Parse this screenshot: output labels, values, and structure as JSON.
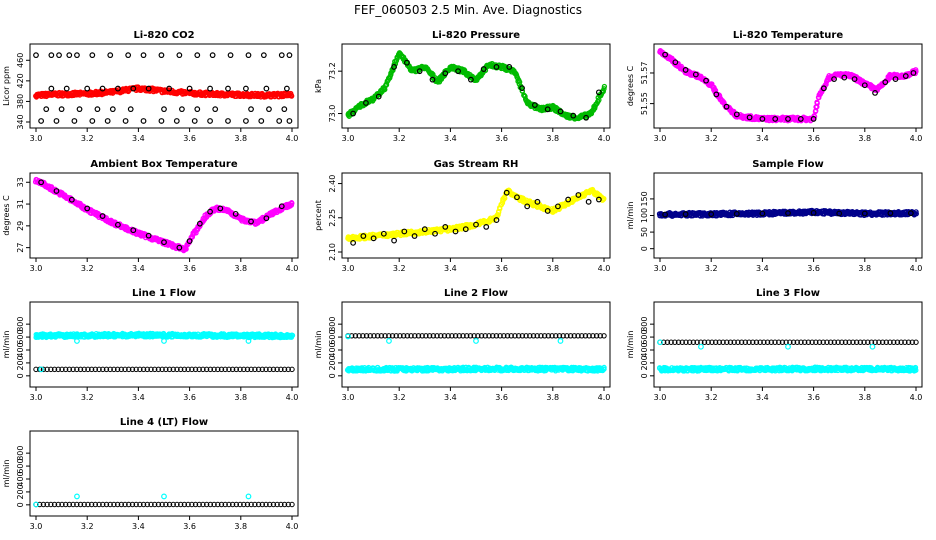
{
  "figure": {
    "title": "FEF_060503  2.5 Min. Ave. Diagnostics"
  },
  "chart_data": [
    {
      "type": "scatter",
      "title": "Li-820 CO2",
      "xlabel": "",
      "ylabel": "Licor ppm",
      "xlim": [
        3.0,
        4.0
      ],
      "ylim": [
        340,
        480
      ],
      "xticks": [
        "3.0",
        "3.2",
        "3.4",
        "3.6",
        "3.8",
        "4.0"
      ],
      "yticks": [
        "340",
        "380",
        "420",
        "460"
      ],
      "series": [
        {
          "color": "#ff0000",
          "marker": "dense-band",
          "x": [
            3.0,
            3.1,
            3.2,
            3.3,
            3.35,
            3.4,
            3.45,
            3.5,
            3.6,
            3.7,
            3.8,
            3.9,
            4.0
          ],
          "y": [
            392,
            394,
            395,
            398,
            402,
            405,
            403,
            400,
            396,
            394,
            393,
            392,
            393
          ]
        },
        {
          "color": "#000000",
          "marker": "circle",
          "x": [
            3.0,
            3.06,
            3.09,
            3.13,
            3.16,
            3.22,
            3.29,
            3.36,
            3.42,
            3.49,
            3.56,
            3.63,
            3.69,
            3.76,
            3.83,
            3.89,
            3.96,
            3.99
          ],
          "y": [
            470,
            470,
            470,
            470,
            470,
            470,
            470,
            470,
            470,
            470,
            470,
            470,
            470,
            470,
            470,
            470,
            470,
            470
          ]
        },
        {
          "color": "#000000",
          "marker": "circle",
          "x": [
            3.06,
            3.12,
            3.2,
            3.26,
            3.32,
            3.38,
            3.44,
            3.52,
            3.6,
            3.68,
            3.75,
            3.82,
            3.9,
            3.98
          ],
          "y": [
            405,
            405,
            405,
            405,
            405,
            405,
            405,
            405,
            405,
            405,
            405,
            405,
            405,
            405
          ]
        },
        {
          "color": "#000000",
          "marker": "circle",
          "x": [
            3.04,
            3.1,
            3.17,
            3.24,
            3.3,
            3.37,
            3.5,
            3.57,
            3.63,
            3.7,
            3.84,
            3.91,
            3.97
          ],
          "y": [
            365,
            365,
            365,
            365,
            365,
            365,
            365,
            365,
            365,
            365,
            365,
            365,
            365
          ]
        },
        {
          "color": "#000000",
          "marker": "circle",
          "x": [
            3.02,
            3.08,
            3.15,
            3.22,
            3.28,
            3.35,
            3.42,
            3.49,
            3.55,
            3.62,
            3.68,
            3.75,
            3.82,
            3.88,
            3.95,
            3.99
          ],
          "y": [
            342,
            342,
            342,
            342,
            342,
            342,
            342,
            342,
            342,
            342,
            342,
            342,
            342,
            342,
            342,
            342
          ]
        }
      ]
    },
    {
      "type": "scatter",
      "title": "Li-820 Pressure",
      "xlabel": "",
      "ylabel": "kPa",
      "xlim": [
        3.0,
        4.0
      ],
      "ylim": [
        72.96,
        73.3
      ],
      "xticks": [
        "3.0",
        "3.2",
        "3.4",
        "3.6",
        "3.8",
        "4.0"
      ],
      "yticks": [
        "73.0",
        "73.2"
      ],
      "series": [
        {
          "color": "#00bb00",
          "marker": "dense-band",
          "x": [
            3.0,
            3.05,
            3.1,
            3.15,
            3.2,
            3.25,
            3.3,
            3.35,
            3.4,
            3.45,
            3.5,
            3.55,
            3.6,
            3.65,
            3.7,
            3.75,
            3.8,
            3.85,
            3.9,
            3.95,
            4.0
          ],
          "y": [
            72.99,
            73.04,
            73.07,
            73.13,
            73.29,
            73.2,
            73.22,
            73.15,
            73.22,
            73.2,
            73.16,
            73.23,
            73.22,
            73.2,
            73.05,
            73.02,
            73.03,
            72.99,
            72.98,
            73.0,
            73.12
          ]
        },
        {
          "color": "#000000",
          "marker": "circle",
          "x": [
            3.02,
            3.07,
            3.12,
            3.18,
            3.23,
            3.28,
            3.33,
            3.38,
            3.43,
            3.48,
            3.53,
            3.58,
            3.63,
            3.68,
            3.73,
            3.78,
            3.83,
            3.88,
            3.93,
            3.98
          ],
          "y": [
            73.0,
            73.05,
            73.08,
            73.22,
            73.24,
            73.2,
            73.16,
            73.19,
            73.2,
            73.16,
            73.21,
            73.22,
            73.22,
            73.12,
            73.04,
            73.02,
            73.01,
            72.99,
            72.98,
            73.1
          ]
        }
      ]
    },
    {
      "type": "scatter",
      "title": "Li-820 Temperature",
      "xlabel": "",
      "ylabel": "degrees C",
      "xlim": [
        3.0,
        4.0
      ],
      "ylim": [
        51.538,
        51.585
      ],
      "xticks": [
        "3.0",
        "3.2",
        "3.4",
        "3.6",
        "3.8",
        "4.0"
      ],
      "yticks": [
        "51.55",
        "51.57"
      ],
      "series": [
        {
          "color": "#ff00ff",
          "marker": "dense-band",
          "x": [
            3.0,
            3.05,
            3.1,
            3.15,
            3.2,
            3.25,
            3.3,
            3.4,
            3.5,
            3.6,
            3.62,
            3.66,
            3.7,
            3.75,
            3.8,
            3.85,
            3.9,
            3.95,
            4.0
          ],
          "y": [
            51.584,
            51.578,
            51.571,
            51.568,
            51.562,
            51.55,
            51.542,
            51.54,
            51.54,
            51.54,
            51.555,
            51.567,
            51.569,
            51.568,
            51.563,
            51.559,
            51.568,
            51.568,
            51.571
          ]
        },
        {
          "color": "#000000",
          "marker": "circle",
          "x": [
            3.02,
            3.06,
            3.1,
            3.14,
            3.18,
            3.22,
            3.26,
            3.3,
            3.35,
            3.4,
            3.45,
            3.5,
            3.55,
            3.6,
            3.64,
            3.68,
            3.72,
            3.76,
            3.8,
            3.84,
            3.88,
            3.92,
            3.96,
            3.99
          ],
          "y": [
            51.582,
            51.577,
            51.572,
            51.569,
            51.565,
            51.556,
            51.548,
            51.543,
            51.541,
            51.54,
            51.54,
            51.54,
            51.54,
            51.54,
            51.56,
            51.566,
            51.567,
            51.566,
            51.562,
            51.557,
            51.564,
            51.566,
            51.568,
            51.57
          ]
        }
      ]
    },
    {
      "type": "scatter",
      "title": "Ambient Box Temperature",
      "xlabel": "",
      "ylabel": "degrees C",
      "xlim": [
        3.0,
        4.0
      ],
      "ylim": [
        26.6,
        33.3
      ],
      "xticks": [
        "3.0",
        "3.2",
        "3.4",
        "3.6",
        "3.8",
        "4.0"
      ],
      "yticks": [
        "27",
        "29",
        "31",
        "33"
      ],
      "series": [
        {
          "color": "#ff00ff",
          "marker": "dense-band",
          "x": [
            3.0,
            3.1,
            3.2,
            3.3,
            3.4,
            3.5,
            3.58,
            3.62,
            3.66,
            3.7,
            3.75,
            3.8,
            3.86,
            3.9,
            3.95,
            4.0
          ],
          "y": [
            33.2,
            31.9,
            30.5,
            29.3,
            28.3,
            27.5,
            26.8,
            28.4,
            29.8,
            30.6,
            30.4,
            29.6,
            29.3,
            29.8,
            30.5,
            31.0
          ]
        },
        {
          "color": "#000000",
          "marker": "circle",
          "x": [
            3.02,
            3.08,
            3.14,
            3.2,
            3.26,
            3.32,
            3.38,
            3.44,
            3.5,
            3.56,
            3.6,
            3.64,
            3.68,
            3.72,
            3.78,
            3.84,
            3.9,
            3.96
          ],
          "y": [
            33.0,
            32.2,
            31.4,
            30.6,
            29.9,
            29.1,
            28.6,
            28.1,
            27.5,
            27.0,
            27.6,
            29.2,
            30.3,
            30.6,
            30.1,
            29.4,
            29.7,
            30.8
          ]
        }
      ]
    },
    {
      "type": "scatter",
      "title": "Gas Stream RH",
      "xlabel": "",
      "ylabel": "percent",
      "xlim": [
        3.0,
        4.0
      ],
      "ylim": [
        2.1,
        2.42
      ],
      "xticks": [
        "3.0",
        "3.2",
        "3.4",
        "3.6",
        "3.8",
        "4.0"
      ],
      "yticks": [
        "2.10",
        "2.25",
        "2.40"
      ],
      "series": [
        {
          "color": "#ffff00",
          "marker": "dense-band",
          "x": [
            3.0,
            3.1,
            3.2,
            3.3,
            3.4,
            3.5,
            3.58,
            3.62,
            3.66,
            3.7,
            3.75,
            3.8,
            3.85,
            3.9,
            3.95,
            4.0
          ],
          "y": [
            2.16,
            2.17,
            2.18,
            2.19,
            2.2,
            2.22,
            2.25,
            2.37,
            2.34,
            2.32,
            2.3,
            2.28,
            2.31,
            2.34,
            2.37,
            2.33
          ]
        },
        {
          "color": "#000000",
          "marker": "circle",
          "x": [
            3.02,
            3.06,
            3.1,
            3.14,
            3.18,
            3.22,
            3.26,
            3.3,
            3.34,
            3.38,
            3.42,
            3.46,
            3.5,
            3.54,
            3.58,
            3.62,
            3.66,
            3.7,
            3.74,
            3.78,
            3.82,
            3.86,
            3.9,
            3.94,
            3.98
          ],
          "y": [
            2.14,
            2.17,
            2.16,
            2.18,
            2.15,
            2.19,
            2.17,
            2.2,
            2.18,
            2.21,
            2.19,
            2.2,
            2.22,
            2.21,
            2.24,
            2.36,
            2.34,
            2.3,
            2.32,
            2.28,
            2.3,
            2.33,
            2.35,
            2.32,
            2.33
          ]
        }
      ]
    },
    {
      "type": "scatter",
      "title": "Sample Flow",
      "xlabel": "",
      "ylabel": "ml/min",
      "xlim": [
        3.0,
        4.0
      ],
      "ylim": [
        -10,
        210
      ],
      "xticks": [
        "3.0",
        "3.2",
        "3.4",
        "3.6",
        "3.8",
        "4.0"
      ],
      "yticks": [
        "0",
        "50",
        "100",
        "150"
      ],
      "series": [
        {
          "color": "#00008b",
          "marker": "dense-band",
          "x": [
            3.0,
            3.2,
            3.4,
            3.6,
            3.8,
            4.0
          ],
          "y": [
            103,
            104,
            106,
            110,
            106,
            107
          ]
        },
        {
          "color": "#000000",
          "marker": "circle",
          "x": [
            3.02,
            3.1,
            3.2,
            3.3,
            3.4,
            3.5,
            3.6,
            3.7,
            3.8,
            3.9,
            3.98
          ],
          "y": [
            103,
            104,
            104,
            105,
            106,
            107,
            108,
            106,
            106,
            107,
            107
          ]
        }
      ]
    },
    {
      "type": "scatter",
      "title": "Line 1 Flow",
      "xlabel": "",
      "ylabel": "ml/min",
      "xlim": [
        3.0,
        4.0
      ],
      "ylim": [
        -80,
        1050
      ],
      "xticks": [
        "3.0",
        "3.2",
        "3.4",
        "3.6",
        "3.8",
        "4.0"
      ],
      "yticks": [
        "0",
        "200",
        "400",
        "600",
        "800"
      ],
      "series": [
        {
          "color": "#00ffff",
          "marker": "dense-band",
          "x": [
            3.0,
            3.2,
            3.4,
            3.6,
            3.8,
            4.0
          ],
          "y": [
            620,
            625,
            630,
            628,
            622,
            618
          ]
        },
        {
          "color": "#00ffff",
          "marker": "circle",
          "x": [
            3.16,
            3.5,
            3.83
          ],
          "y": [
            540,
            540,
            540
          ]
        },
        {
          "color": "#000000",
          "marker": "circle-row",
          "x": [
            3.0,
            4.0
          ],
          "y": [
            100,
            100
          ]
        },
        {
          "color": "#00ffff",
          "marker": "circle",
          "x": [
            3.02
          ],
          "y": [
            100
          ]
        }
      ]
    },
    {
      "type": "scatter",
      "title": "Line 2 Flow",
      "xlabel": "",
      "ylabel": "ml/min",
      "xlim": [
        3.0,
        4.0
      ],
      "ylim": [
        -80,
        1050
      ],
      "xticks": [
        "3.0",
        "3.2",
        "3.4",
        "3.6",
        "3.8",
        "4.0"
      ],
      "yticks": [
        "0",
        "200",
        "400",
        "600",
        "800"
      ],
      "series": [
        {
          "color": "#000000",
          "marker": "circle-row",
          "x": [
            3.0,
            4.0
          ],
          "y": [
            620,
            620
          ]
        },
        {
          "color": "#00ffff",
          "marker": "circle",
          "x": [
            3.16,
            3.5,
            3.83
          ],
          "y": [
            540,
            540,
            540
          ]
        },
        {
          "color": "#00ffff",
          "marker": "dense-band",
          "x": [
            3.0,
            3.2,
            3.4,
            3.6,
            3.8,
            4.0
          ],
          "y": [
            100,
            102,
            104,
            106,
            104,
            102
          ]
        },
        {
          "color": "#00ffff",
          "marker": "circle",
          "x": [
            3.0
          ],
          "y": [
            610
          ]
        }
      ]
    },
    {
      "type": "scatter",
      "title": "Line 3 Flow",
      "xlabel": "",
      "ylabel": "ml/min",
      "xlim": [
        3.0,
        4.0
      ],
      "ylim": [
        -80,
        1050
      ],
      "xticks": [
        "3.0",
        "3.2",
        "3.4",
        "3.6",
        "3.8",
        "4.0"
      ],
      "yticks": [
        "0",
        "200",
        "400",
        "600",
        "800"
      ],
      "series": [
        {
          "color": "#000000",
          "marker": "circle-row",
          "x": [
            3.0,
            4.0
          ],
          "y": [
            520,
            520
          ]
        },
        {
          "color": "#00ffff",
          "marker": "circle",
          "x": [
            3.16,
            3.5,
            3.83
          ],
          "y": [
            450,
            450,
            450
          ]
        },
        {
          "color": "#00ffff",
          "marker": "dense-band",
          "x": [
            3.0,
            3.2,
            3.4,
            3.6,
            3.8,
            4.0
          ],
          "y": [
            100,
            102,
            104,
            106,
            104,
            102
          ]
        },
        {
          "color": "#00ffff",
          "marker": "circle",
          "x": [
            3.0
          ],
          "y": [
            520
          ]
        }
      ]
    },
    {
      "type": "scatter",
      "title": "Line 4 (LT) Flow",
      "xlabel": "",
      "ylabel": "ml/min",
      "xlim": [
        3.0,
        4.0
      ],
      "ylim": [
        -80,
        1050
      ],
      "xticks": [
        "3.0",
        "3.2",
        "3.4",
        "3.6",
        "3.8",
        "4.0"
      ],
      "yticks": [
        "0",
        "200",
        "400",
        "600",
        "800"
      ],
      "series": [
        {
          "color": "#000000",
          "marker": "circle-row",
          "x": [
            3.0,
            4.0
          ],
          "y": [
            5,
            5
          ]
        },
        {
          "color": "#00ffff",
          "marker": "circle",
          "x": [
            3.16,
            3.5,
            3.83
          ],
          "y": [
            130,
            130,
            130
          ]
        },
        {
          "color": "#00ffff",
          "marker": "circle",
          "x": [
            3.0
          ],
          "y": [
            5
          ]
        }
      ]
    }
  ]
}
